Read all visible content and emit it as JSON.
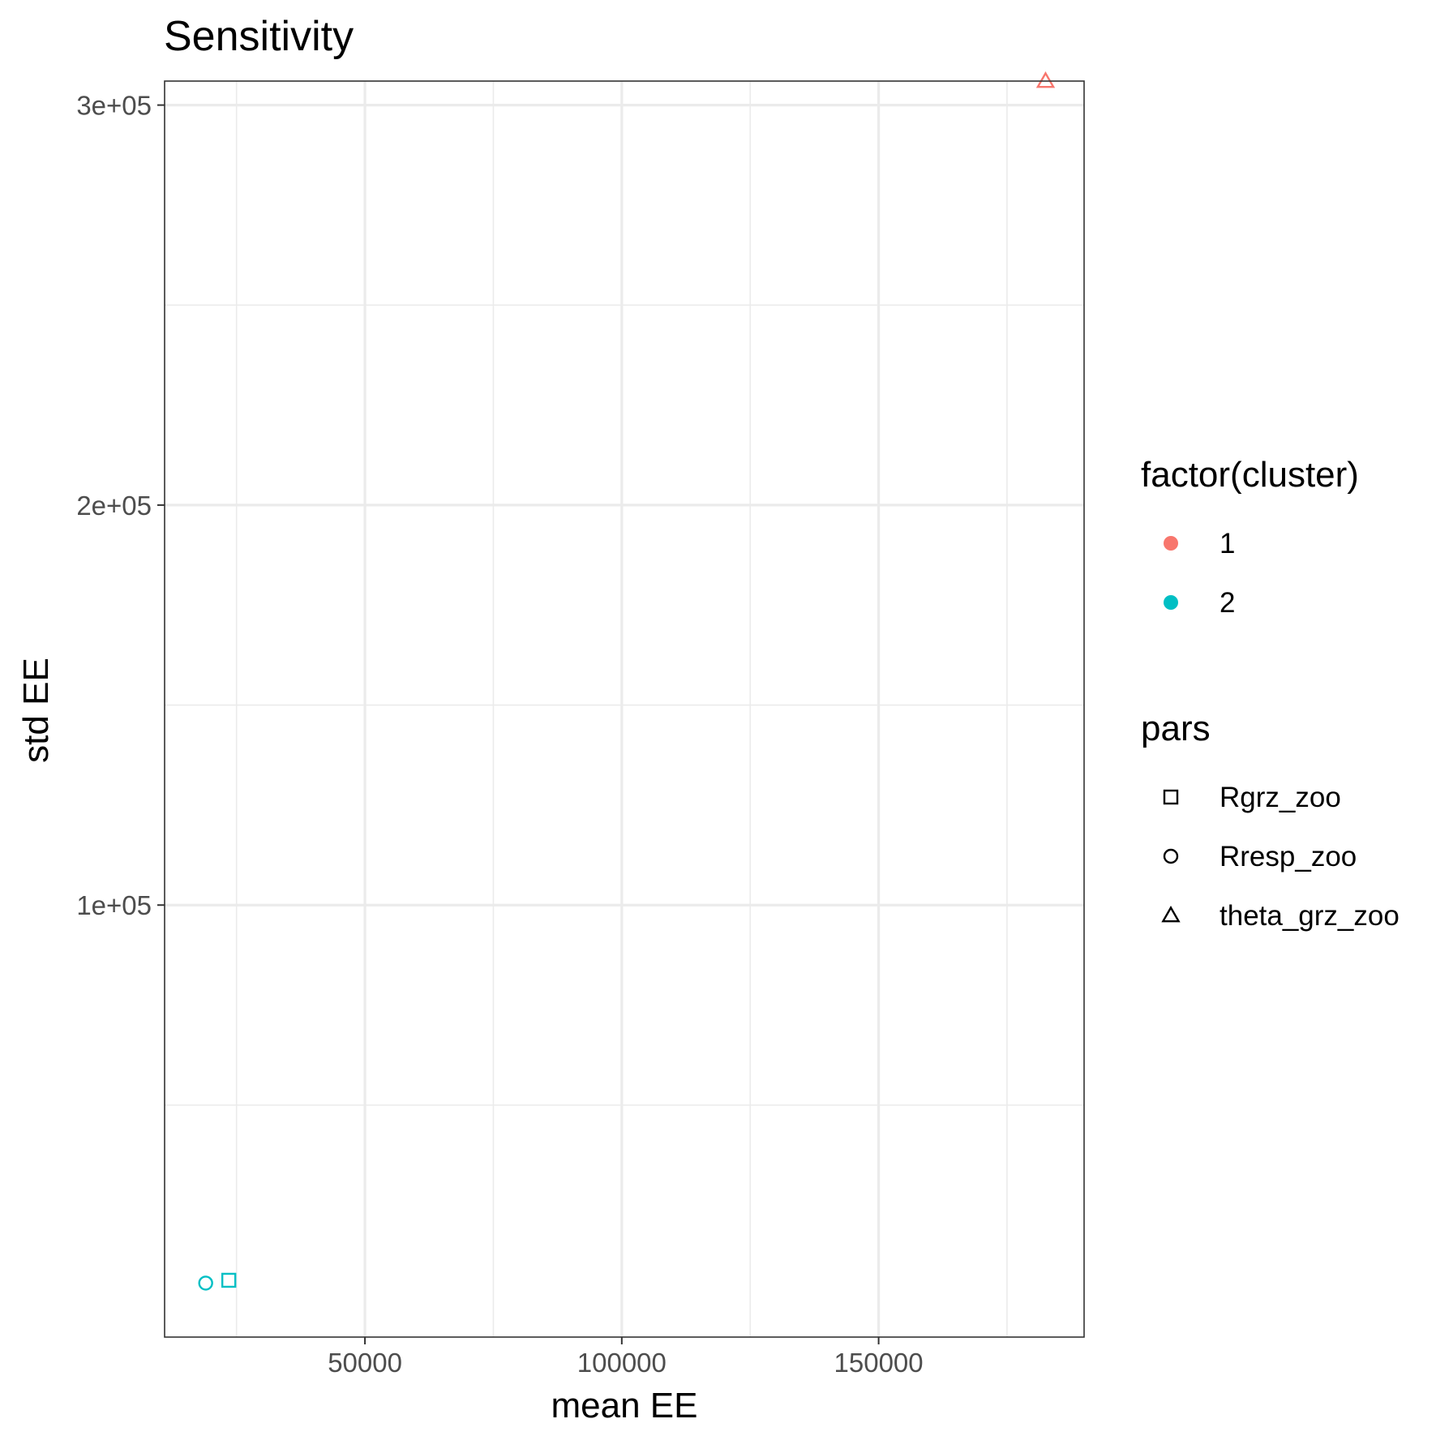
{
  "colors": {
    "cluster_1": "#F8766D",
    "cluster_2": "#00BFC4",
    "grid": "#ebebeb",
    "panel_border": "#333333",
    "tick_text": "#4d4d4d"
  },
  "chart_data": {
    "type": "scatter",
    "title": "Sensitivity",
    "xlabel": "mean EE",
    "ylabel": "std EE",
    "xlim": [
      11000,
      190000
    ],
    "ylim": [
      -8000,
      306000
    ],
    "x_ticks": [
      50000,
      100000,
      150000
    ],
    "x_tick_labels": [
      "50000",
      "100000",
      "150000"
    ],
    "x_minor_ticks": [
      25000,
      75000,
      125000,
      175000
    ],
    "y_ticks": [
      100000,
      200000,
      300000
    ],
    "y_tick_labels": [
      "1e+05",
      "2e+05",
      "3e+05"
    ],
    "y_minor_ticks": [
      50000,
      150000,
      250000
    ],
    "grid": true,
    "legend_position": "right",
    "points": [
      {
        "par": "Rgrz_zoo",
        "cluster": "2",
        "x": 23500,
        "y": 6200,
        "shape": "square"
      },
      {
        "par": "Rresp_zoo",
        "cluster": "2",
        "x": 19000,
        "y": 5500,
        "shape": "circle"
      },
      {
        "par": "theta_grz_zoo",
        "cluster": "1",
        "x": 182500,
        "y": 306000,
        "shape": "triangle"
      }
    ],
    "legends": [
      {
        "title": "factor(cluster)",
        "entries": [
          {
            "label": "1",
            "color": "#F8766D",
            "shape": "dot"
          },
          {
            "label": "2",
            "color": "#00BFC4",
            "shape": "dot"
          }
        ]
      },
      {
        "title": "pars",
        "entries": [
          {
            "label": "Rgrz_zoo",
            "shape": "square"
          },
          {
            "label": "Rresp_zoo",
            "shape": "circle"
          },
          {
            "label": "theta_grz_zoo",
            "shape": "triangle"
          }
        ]
      }
    ]
  }
}
